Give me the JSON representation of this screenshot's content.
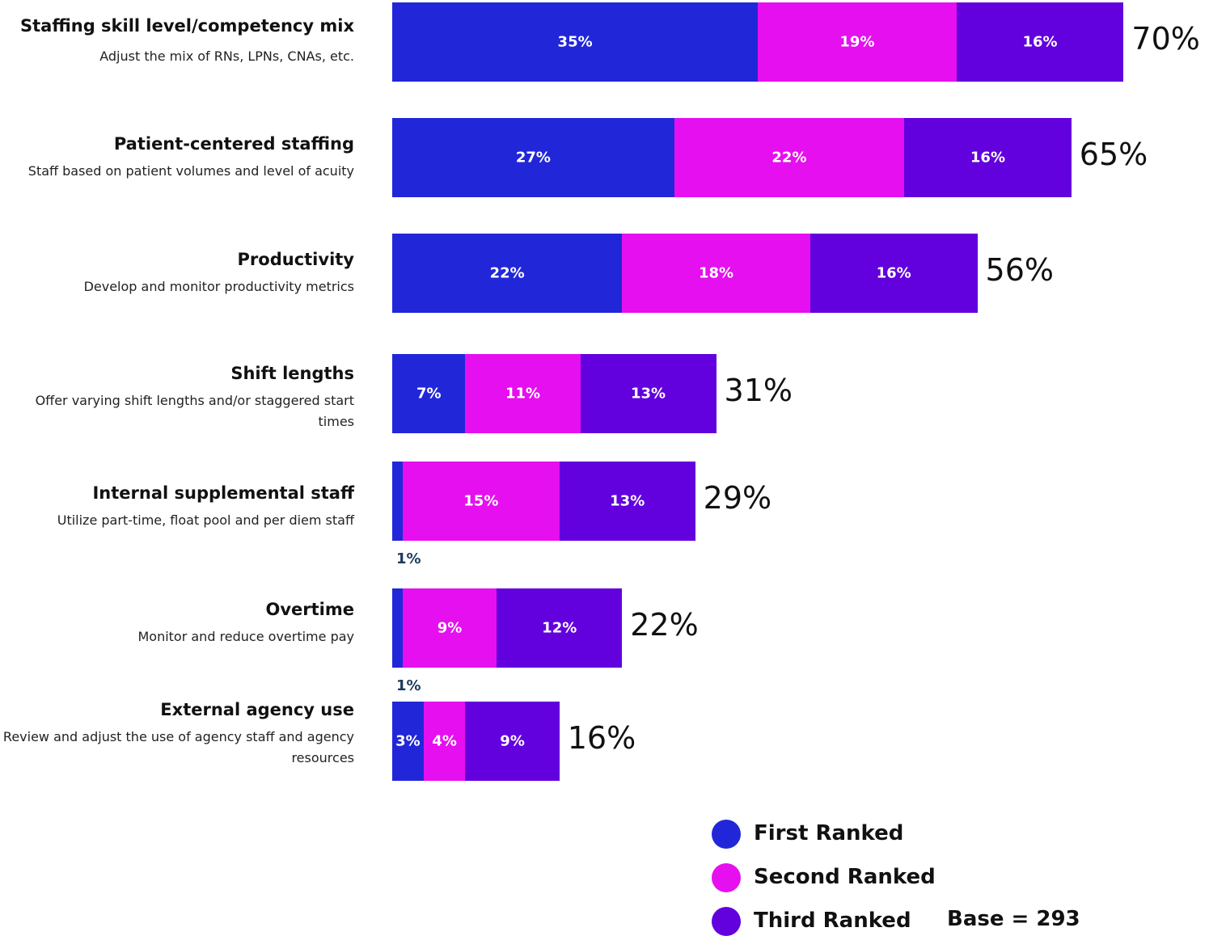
{
  "chart_data": {
    "type": "bar",
    "orientation": "horizontal",
    "stacked": true,
    "categories": [
      "Staffing skill level/competency mix",
      "Patient-centered staffing",
      "Productivity",
      "Shift lengths",
      "Internal supplemental staff",
      "Overtime",
      "External agency use"
    ],
    "descriptions": [
      "Adjust the mix of RNs, LPNs, CNAs, etc.",
      "Staff based on patient volumes and level of acuity",
      "Develop and monitor productivity metrics",
      "Offer varying shift lengths and/or staggered start times",
      "Utilize part-time, float pool and per diem staff",
      "Monitor and reduce overtime pay",
      "Review and adjust the use of agency staff and agency resources"
    ],
    "series": [
      {
        "name": "First Ranked",
        "values": [
          35,
          27,
          22,
          7,
          1,
          1,
          3
        ],
        "labels": [
          "35%",
          "27%",
          "22%",
          "7%",
          "1%",
          "1%",
          "3%"
        ],
        "color": "#2127d8"
      },
      {
        "name": "Second Ranked",
        "values": [
          19,
          22,
          18,
          11,
          15,
          9,
          4
        ],
        "labels": [
          "19%",
          "22%",
          "18%",
          "11%",
          "15%",
          "9%",
          "4%"
        ],
        "color": "#e60fef"
      },
      {
        "name": "Third Ranked",
        "values": [
          16,
          16,
          16,
          13,
          13,
          12,
          9
        ],
        "labels": [
          "16%",
          "16%",
          "16%",
          "13%",
          "13%",
          "12%",
          "9%"
        ],
        "color": "#6200de"
      }
    ],
    "totals": [
      70,
      65,
      56,
      31,
      29,
      22,
      16
    ],
    "total_labels": [
      "70%",
      "65%",
      "56%",
      "31%",
      "29%",
      "22%",
      "16%"
    ],
    "value_unit": "%",
    "legend_position": "bottom-right",
    "grid": false
  },
  "legend": {
    "items": [
      {
        "label": "First Ranked",
        "color": "#2127d8"
      },
      {
        "label": "Second Ranked",
        "color": "#e60fef"
      },
      {
        "label": "Third Ranked",
        "color": "#6200de"
      }
    ]
  },
  "base_note": "Base = 293"
}
